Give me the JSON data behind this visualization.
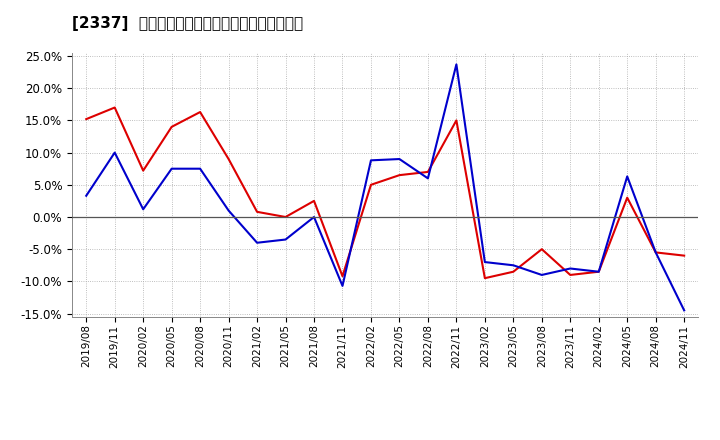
{
  "title": "[2337]  有利子負債キャッシュフロー比率の推移",
  "dates": [
    "2019/08",
    "2019/11",
    "2020/02",
    "2020/05",
    "2020/08",
    "2020/11",
    "2021/02",
    "2021/05",
    "2021/08",
    "2021/11",
    "2022/02",
    "2022/05",
    "2022/08",
    "2022/11",
    "2023/02",
    "2023/05",
    "2023/08",
    "2023/11",
    "2024/02",
    "2024/05",
    "2024/08",
    "2024/11"
  ],
  "operating_cf": [
    0.152,
    0.17,
    0.072,
    0.14,
    0.163,
    0.09,
    0.008,
    0.0,
    0.025,
    -0.092,
    0.05,
    0.065,
    0.07,
    0.15,
    -0.095,
    -0.085,
    -0.05,
    -0.09,
    -0.085,
    0.03,
    -0.055,
    -0.06
  ],
  "free_cf": [
    0.033,
    0.1,
    0.012,
    0.075,
    0.075,
    0.01,
    -0.04,
    -0.035,
    0.0,
    -0.107,
    0.088,
    0.09,
    0.06,
    0.237,
    -0.07,
    -0.075,
    -0.09,
    -0.08,
    -0.085,
    0.063,
    -0.055,
    -0.145
  ],
  "ylim": [
    -0.155,
    0.255
  ],
  "yticks": [
    -0.15,
    -0.1,
    -0.05,
    0.0,
    0.05,
    0.1,
    0.15,
    0.2,
    0.25
  ],
  "operating_color": "#dd0000",
  "free_color": "#0000cc",
  "background_color": "#ffffff",
  "grid_color": "#aaaaaa",
  "zero_line_color": "#555555"
}
